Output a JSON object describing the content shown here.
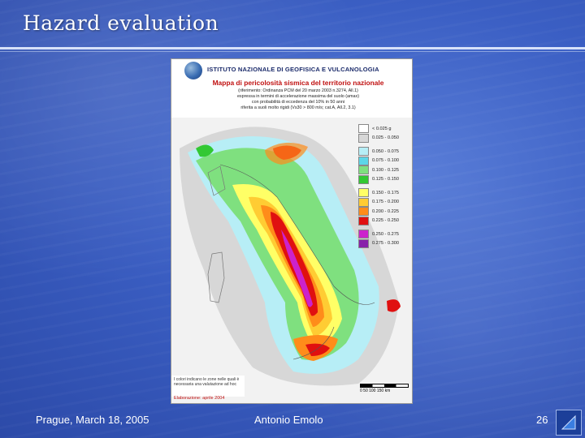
{
  "slide": {
    "title": "Hazard evaluation",
    "footer_left": "Prague, March 18, 2005",
    "footer_center": "Antonio Emolo",
    "footer_right": "26"
  },
  "map": {
    "institute": "ISTITUTO NAZIONALE DI GEOFISICA E VULCANOLOGIA",
    "heading": "Mappa di pericolosità sismica del territorio nazionale",
    "subtitle_lines": [
      "(riferimento: Ordinanza PCM del 20 marzo 2003 n.3274, All.1)",
      "espressa in termini di accelerazione massima del suolo (amax)",
      "con probabilità di eccedenza del 10% in 50 anni",
      "riferita a suoli molto rigidi (Vs30 > 800 m/s; cat.A, All.2, 3.1)"
    ],
    "legend": [
      {
        "label": "< 0.025 g",
        "color": "#ffffff"
      },
      {
        "label": "0.025 - 0.050",
        "color": "#d7d7d7"
      },
      {
        "label": "0.050 - 0.075",
        "color": "#b7eef6"
      },
      {
        "label": "0.075 - 0.100",
        "color": "#5cd6e8"
      },
      {
        "label": "0.100 - 0.125",
        "color": "#7fe07f"
      },
      {
        "label": "0.125 - 0.150",
        "color": "#33c833"
      },
      {
        "label": "0.150 - 0.175",
        "color": "#ffff66"
      },
      {
        "label": "0.175 - 0.200",
        "color": "#ffcc33"
      },
      {
        "label": "0.200 - 0.225",
        "color": "#ff8c1a"
      },
      {
        "label": "0.225 - 0.250",
        "color": "#e01010"
      },
      {
        "label": "0.250 - 0.275",
        "color": "#cc22cc"
      },
      {
        "label": "0.275 - 0.300",
        "color": "#8822aa"
      }
    ],
    "footnote": "I colori indicano le zone nelle quali è necessaria una valutazione ad hoc",
    "credit": "Elaborazione: aprile 2004",
    "scale_label": "0   50  100  150 km"
  }
}
